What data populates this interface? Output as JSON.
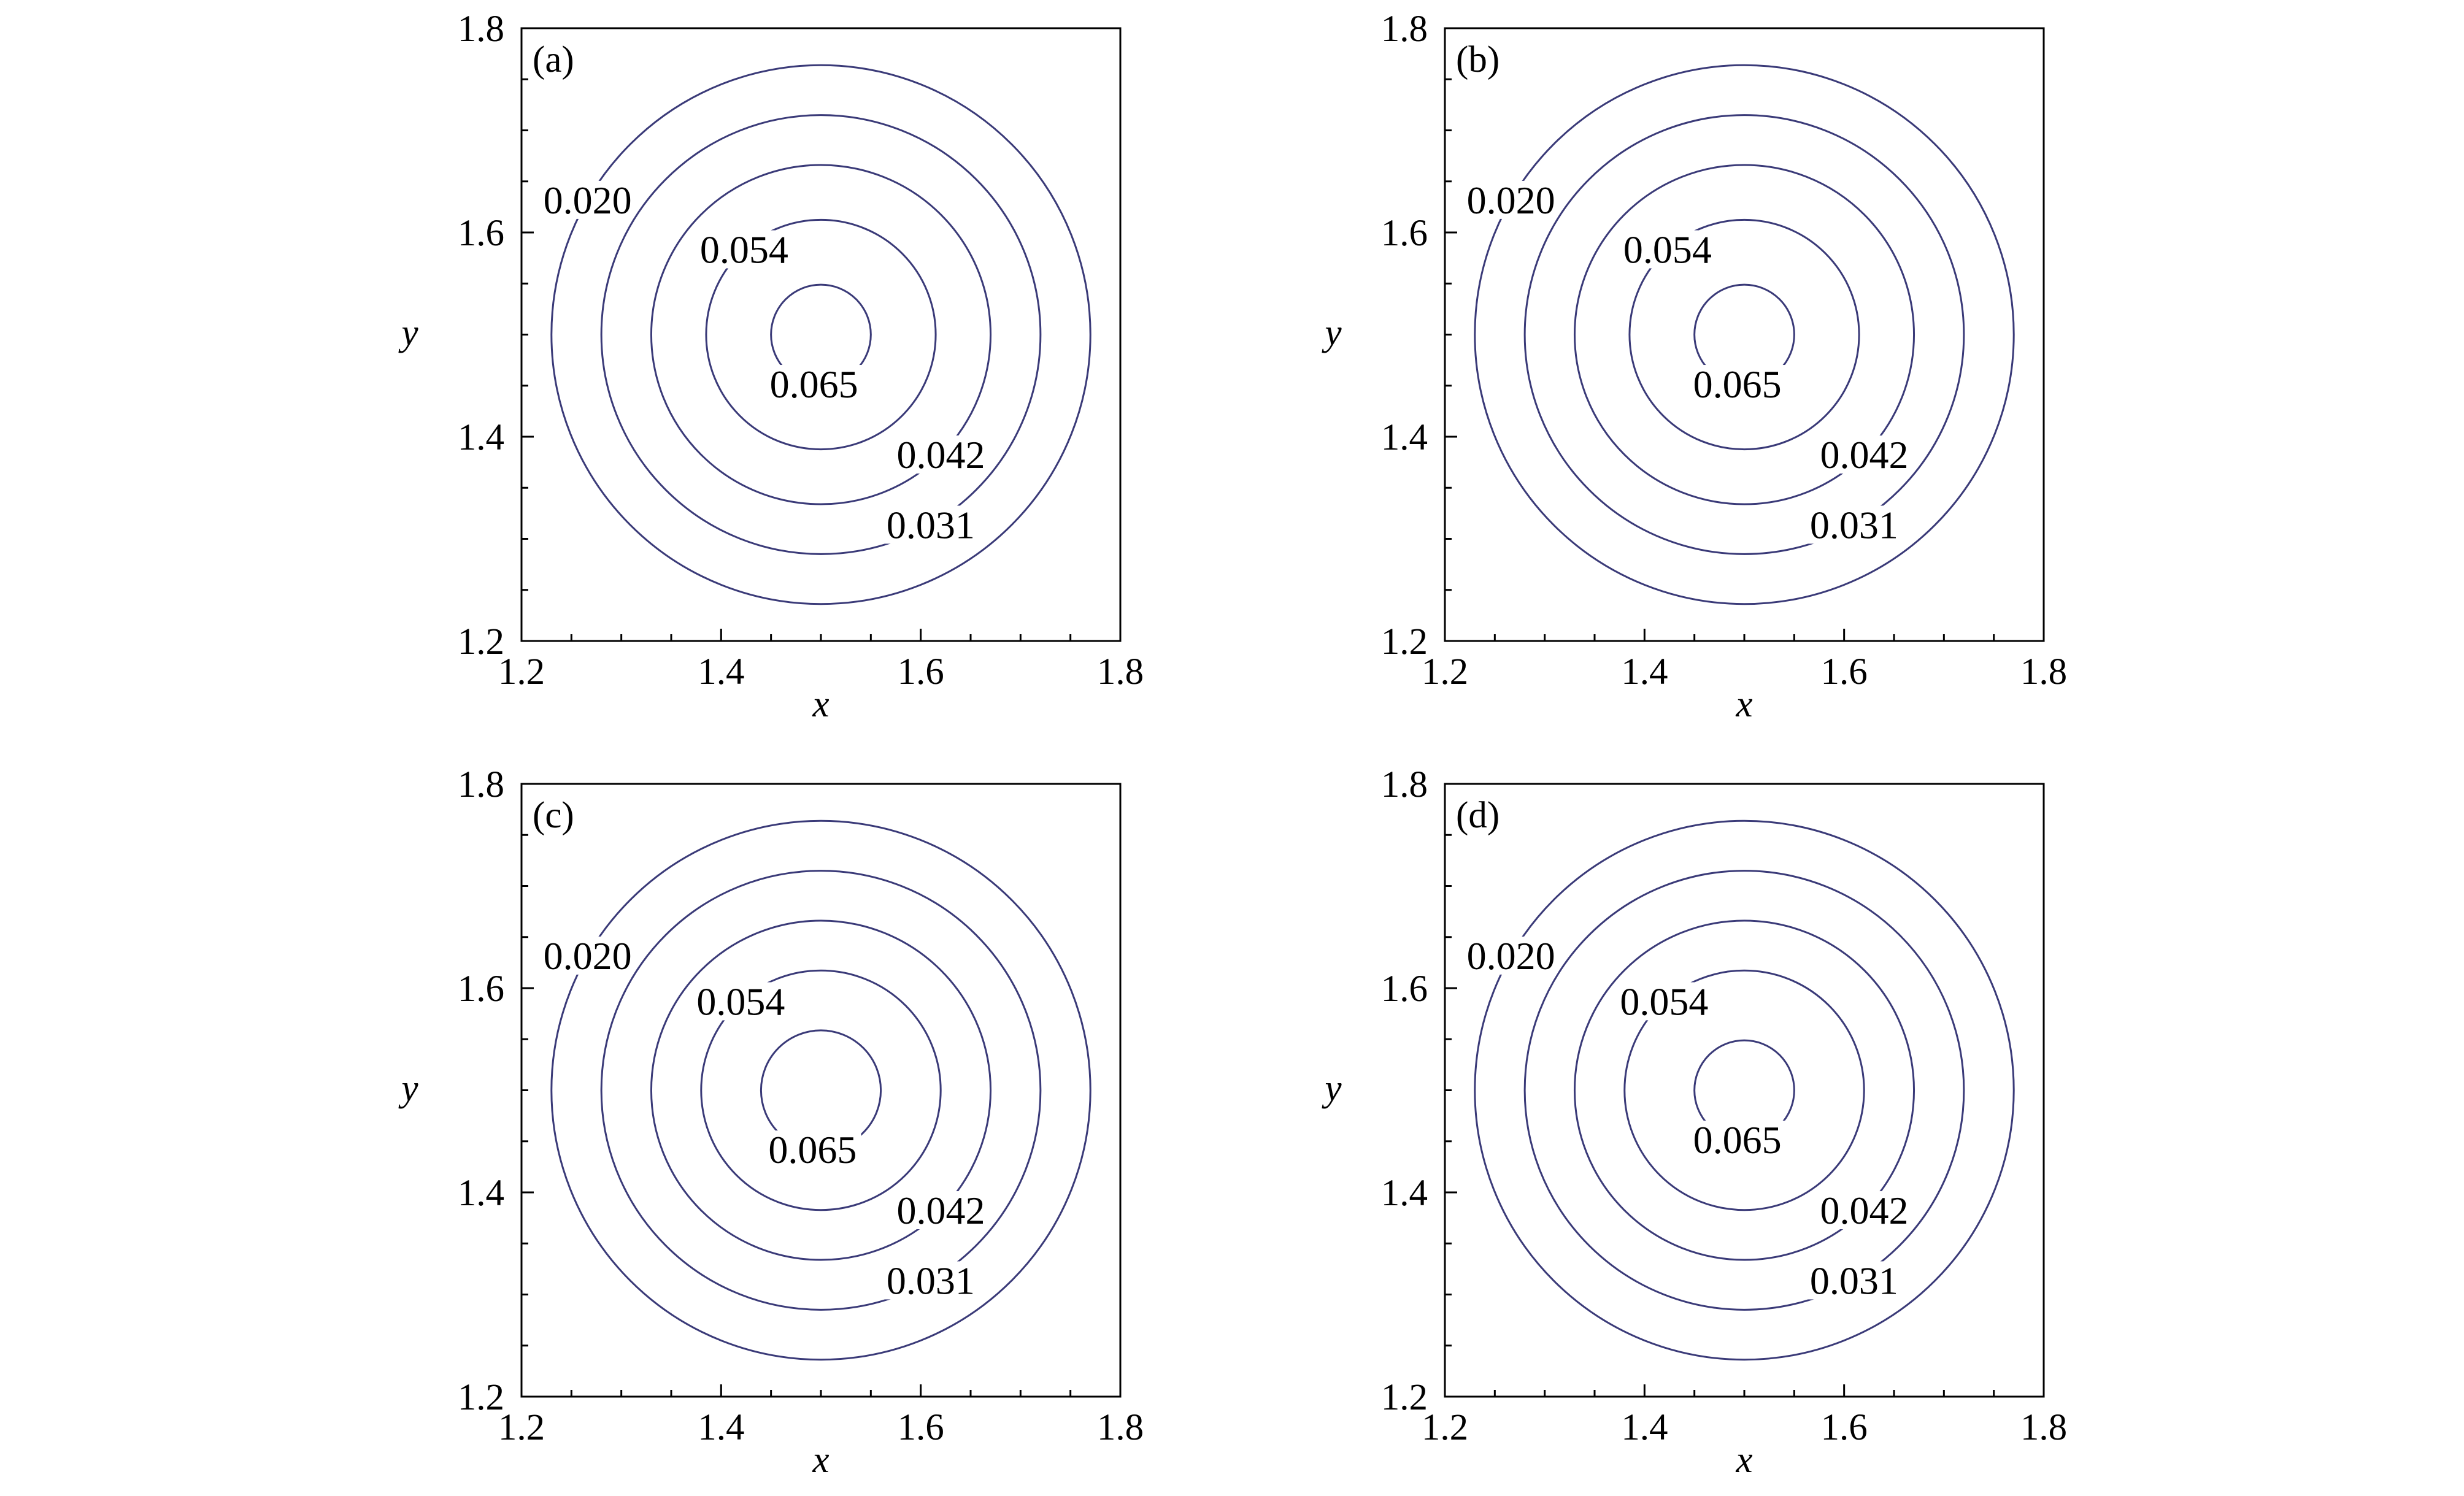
{
  "colors": {
    "contour": "#3a3a78",
    "axis": "#000000",
    "background": "#ffffff"
  },
  "chart_data": [
    {
      "type": "contour",
      "panel_label": "(a)",
      "xlabel": "x",
      "ylabel": "y",
      "xlim": [
        1.2,
        1.8
      ],
      "ylim": [
        1.2,
        1.8
      ],
      "xticks": [
        "1.2",
        "1.4",
        "1.6",
        "1.8"
      ],
      "yticks": [
        "1.2",
        "1.4",
        "1.6",
        "1.8"
      ],
      "center": [
        1.5,
        1.5
      ],
      "levels": [
        {
          "label": "0.020",
          "radius": 0.27
        },
        {
          "label": "0.031",
          "radius": 0.22
        },
        {
          "label": "0.042",
          "radius": 0.17
        },
        {
          "label": "0.054",
          "radius": 0.115
        },
        {
          "label": "0.065",
          "radius": 0.05
        }
      ]
    },
    {
      "type": "contour",
      "panel_label": "(b)",
      "xlabel": "x",
      "ylabel": "y",
      "xlim": [
        1.2,
        1.8
      ],
      "ylim": [
        1.2,
        1.8
      ],
      "xticks": [
        "1.2",
        "1.4",
        "1.6",
        "1.8"
      ],
      "yticks": [
        "1.2",
        "1.4",
        "1.6",
        "1.8"
      ],
      "center": [
        1.5,
        1.5
      ],
      "levels": [
        {
          "label": "0.020",
          "radius": 0.27
        },
        {
          "label": "0.031",
          "radius": 0.22
        },
        {
          "label": "0.042",
          "radius": 0.17
        },
        {
          "label": "0.054",
          "radius": 0.115
        },
        {
          "label": "0.065",
          "radius": 0.05
        }
      ]
    },
    {
      "type": "contour",
      "panel_label": "(c)",
      "xlabel": "x",
      "ylabel": "y",
      "xlim": [
        1.2,
        1.8
      ],
      "ylim": [
        1.2,
        1.8
      ],
      "xticks": [
        "1.2",
        "1.4",
        "1.6",
        "1.8"
      ],
      "yticks": [
        "1.2",
        "1.4",
        "1.6",
        "1.8"
      ],
      "center": [
        1.5,
        1.5
      ],
      "levels": [
        {
          "label": "0.020",
          "radius": 0.27
        },
        {
          "label": "0.031",
          "radius": 0.22
        },
        {
          "label": "0.042",
          "radius": 0.17
        },
        {
          "label": "0.054",
          "radius": 0.12
        },
        {
          "label": "0.065",
          "radius": 0.06
        }
      ]
    },
    {
      "type": "contour",
      "panel_label": "(d)",
      "xlabel": "x",
      "ylabel": "y",
      "xlim": [
        1.2,
        1.8
      ],
      "ylim": [
        1.2,
        1.8
      ],
      "xticks": [
        "1.2",
        "1.4",
        "1.6",
        "1.8"
      ],
      "yticks": [
        "1.2",
        "1.4",
        "1.6",
        "1.8"
      ],
      "center": [
        1.5,
        1.5
      ],
      "levels": [
        {
          "label": "0.020",
          "radius": 0.27
        },
        {
          "label": "0.031",
          "radius": 0.22
        },
        {
          "label": "0.042",
          "radius": 0.17
        },
        {
          "label": "0.054",
          "radius": 0.12
        },
        {
          "label": "0.065",
          "radius": 0.05
        }
      ]
    }
  ]
}
